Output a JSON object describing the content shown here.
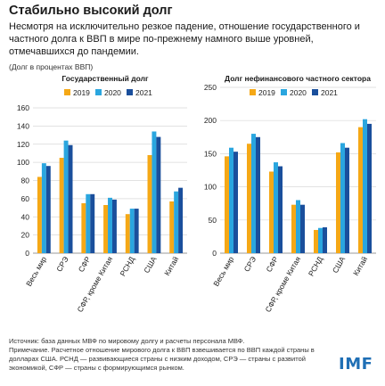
{
  "title": "Стабильно высокий долг",
  "subtitle": "Несмотря на исключительно резкое падение, отношение государственного и частного долга к ВВП в мире по-прежнему намного выше уровней, отмечавшихся до пандемии.",
  "units_note": "(Долг в процентах ВВП)",
  "notes": {
    "source": "Источник: база данных МВФ по мировому долгу и расчеты персонала МВФ.",
    "note": "Примечание. Расчетное отношение мирового долга к ВВП взвешивается по ВВП каждой страны в долларах США. РСНД — развивающиеся страны с низким доходом, СРЭ — страны с развитой экономикой, СФР — страны с формирующимся рынком."
  },
  "logo_text": "IMF",
  "colors": {
    "2019": "#f5a816",
    "2020": "#2aa6df",
    "2021": "#1a4f9c"
  },
  "chart_data": [
    {
      "type": "bar",
      "title": "Государственный долг",
      "categories": [
        "Весь мир",
        "СРЭ",
        "СФР",
        "СФР, кроме Китая",
        "РСНД",
        "США",
        "Китай"
      ],
      "series": [
        {
          "name": "2019",
          "values": [
            84,
            105,
            55,
            53,
            43,
            108,
            57
          ]
        },
        {
          "name": "2020",
          "values": [
            99,
            124,
            65,
            61,
            49,
            134,
            68
          ]
        },
        {
          "name": "2021",
          "values": [
            96,
            119,
            65,
            59,
            49,
            128,
            72
          ]
        }
      ],
      "ylim": [
        0,
        160
      ],
      "yticks": [
        0,
        20,
        40,
        60,
        80,
        100,
        120,
        140,
        160
      ],
      "grid": true,
      "legend_position": "top"
    },
    {
      "type": "bar",
      "title": "Долг нефинансового частного сектора",
      "categories": [
        "Весь мир",
        "СРЭ",
        "СФР",
        "СФР, кроме Китая",
        "РСНД",
        "США",
        "Китай"
      ],
      "series": [
        {
          "name": "2019",
          "values": [
            146,
            165,
            123,
            73,
            35,
            152,
            190
          ]
        },
        {
          "name": "2020",
          "values": [
            159,
            180,
            137,
            80,
            38,
            166,
            202
          ]
        },
        {
          "name": "2021",
          "values": [
            153,
            175,
            131,
            73,
            39,
            159,
            195
          ]
        }
      ],
      "ylim": [
        0,
        250
      ],
      "yticks": [
        0,
        50,
        100,
        150,
        200,
        250
      ],
      "grid": true,
      "legend_position": "top"
    }
  ]
}
